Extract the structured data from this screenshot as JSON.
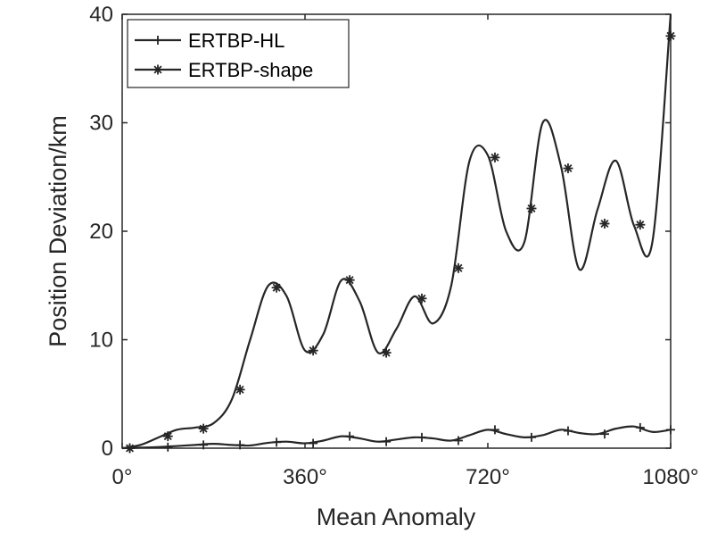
{
  "chart_data": {
    "type": "line",
    "title": "",
    "xlabel": "Mean Anomaly",
    "ylabel": "Position Deviation/km",
    "xlim": [
      0,
      1080
    ],
    "ylim": [
      0,
      40
    ],
    "x_ticks": [
      0,
      360,
      720,
      1080
    ],
    "x_tick_labels": [
      "0°",
      "360°",
      "720°",
      "1080°"
    ],
    "y_ticks": [
      0,
      10,
      20,
      30,
      40
    ],
    "y_tick_labels": [
      "0",
      "10",
      "20",
      "30",
      "40"
    ],
    "grid": false,
    "legend_position": "top-left",
    "series": [
      {
        "name": "ERTBP-HL",
        "marker": "plus",
        "color": "#262626",
        "x": [
          0,
          36,
          72,
          108,
          144,
          180,
          216,
          252,
          288,
          324,
          360,
          396,
          432,
          468,
          504,
          540,
          576,
          612,
          648,
          684,
          720,
          756,
          792,
          828,
          864,
          900,
          936,
          972,
          1008,
          1044,
          1080
        ],
        "y": [
          0,
          0.05,
          0.1,
          0.2,
          0.3,
          0.4,
          0.3,
          0.25,
          0.5,
          0.6,
          0.45,
          0.7,
          1.1,
          0.9,
          0.6,
          0.8,
          1.0,
          0.9,
          0.7,
          1.2,
          1.7,
          1.3,
          1.0,
          1.2,
          1.7,
          1.4,
          1.3,
          1.8,
          2.0,
          1.5,
          1.7
        ],
        "markers_x": [
          15,
          90,
          160,
          232,
          304,
          376,
          448,
          520,
          590,
          662,
          734,
          806,
          878,
          950,
          1020,
          1080
        ],
        "markers_y": [
          0,
          0.1,
          0.3,
          0.3,
          0.55,
          0.45,
          1.1,
          0.6,
          1.0,
          0.7,
          1.7,
          1.0,
          1.6,
          1.3,
          1.9,
          1.7
        ]
      },
      {
        "name": "ERTBP-shape",
        "marker": "asterisk",
        "color": "#262626",
        "x": [
          0,
          36,
          72,
          108,
          144,
          180,
          216,
          252,
          288,
          324,
          360,
          396,
          432,
          468,
          504,
          540,
          576,
          612,
          648,
          684,
          720,
          756,
          792,
          828,
          864,
          900,
          936,
          972,
          1008,
          1044,
          1080
        ],
        "y": [
          0,
          0.3,
          1.0,
          1.7,
          1.9,
          2.3,
          4.5,
          10.0,
          15.0,
          14.0,
          9.0,
          10.5,
          15.5,
          13.5,
          8.8,
          11.0,
          14.0,
          11.5,
          15.0,
          26.5,
          27.0,
          20.0,
          19.0,
          30.0,
          26.0,
          16.5,
          22.0,
          26.5,
          20.5,
          19.0,
          40.0
        ],
        "markers_x": [
          15,
          90,
          160,
          232,
          304,
          376,
          448,
          520,
          590,
          662,
          734,
          806,
          878,
          950,
          1020,
          1080
        ],
        "markers_y": [
          0,
          1.1,
          1.8,
          5.4,
          14.8,
          9.0,
          15.5,
          8.8,
          13.8,
          16.6,
          26.8,
          22.1,
          25.8,
          20.7,
          20.6,
          38.0
        ]
      }
    ]
  }
}
